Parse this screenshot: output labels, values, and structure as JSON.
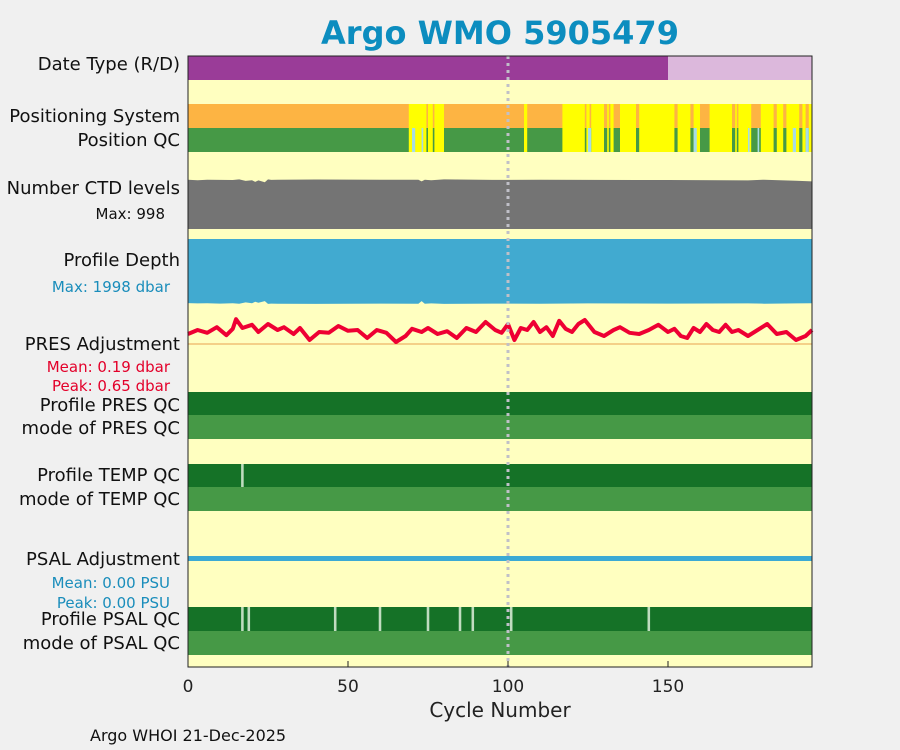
{
  "chart_data": {
    "type": "timeline",
    "title": "Argo WMO 5905479",
    "xlabel": "Cycle Number",
    "xlim": [
      0,
      195
    ],
    "xticks": [
      0,
      50,
      100,
      150
    ],
    "footer": "Argo WHOI 21-Dec-2025",
    "colors": {
      "title": "#0c8dbf",
      "background": "#ffffc0",
      "delayed_mode": "#9a3c98",
      "realtime_mode": "#dcb8dc",
      "gps": "#fdb443",
      "argos": "#ffff00",
      "qc_good": "#469946",
      "qc_probable": "#a6dce6",
      "profile_qc_a": "#157227",
      "profile_qc_other": "#c0dcc0",
      "ctd": "#747474",
      "depth": "#41aad0",
      "pres_adj": "#ee0033",
      "psal_adj": "#3baad4",
      "stat_blue": "#1a8dbb",
      "stat_red": "#e3002a",
      "dotted_line": "#c0c0c8"
    },
    "reference_cycle": 100,
    "rows": {
      "date_type": {
        "label": "Date Type (R/D)",
        "delayed_until": 150
      },
      "positioning": {
        "label": "Positioning System",
        "argos_segments": [
          [
            69,
            74.5
          ],
          [
            75,
            76.5
          ],
          [
            77,
            80
          ],
          [
            105,
            106
          ],
          [
            117,
            124
          ],
          [
            124.5,
            125.5
          ],
          [
            126,
            130
          ],
          [
            131,
            131.5
          ],
          [
            132,
            133
          ],
          [
            135,
            140
          ],
          [
            141,
            152
          ],
          [
            153,
            157
          ],
          [
            158,
            160
          ],
          [
            163,
            170
          ],
          [
            171,
            171.5
          ],
          [
            172,
            176
          ],
          [
            179,
            183
          ],
          [
            184,
            186
          ],
          [
            187,
            191
          ],
          [
            192,
            193
          ],
          [
            194,
            195
          ]
        ]
      },
      "position_qc": {
        "label": "Position QC",
        "probable_segments": [
          [
            70,
            71
          ],
          [
            73,
            73.5
          ],
          [
            125,
            126
          ],
          [
            158,
            159
          ],
          [
            175,
            175.5
          ],
          [
            178,
            178.5
          ],
          [
            189,
            190
          ],
          [
            193,
            194
          ]
        ]
      },
      "ctd_levels": {
        "label": "Number CTD levels",
        "max_label": "Max: 998",
        "max": 998
      },
      "profile_depth": {
        "label": "Profile Depth",
        "max_label": "Max: 1998 dbar",
        "max": 1998
      },
      "pres_adjustment": {
        "label": "PRES Adjustment",
        "mean_label": "Mean: 0.19 dbar",
        "peak_label": "Peak: 0.65 dbar",
        "mean": 0.19,
        "peak": 0.65
      },
      "profile_pres_qc": {
        "label": "Profile PRES QC"
      },
      "mode_pres_qc": {
        "label": "mode of PRES QC"
      },
      "profile_temp_qc": {
        "label": "Profile TEMP QC",
        "non_a_cycles": [
          17
        ]
      },
      "mode_temp_qc": {
        "label": "mode of TEMP QC"
      },
      "psal_adjustment": {
        "label": "PSAL Adjustment",
        "mean_label": "Mean: 0.00 PSU",
        "peak_label": "Peak: 0.00 PSU",
        "mean": 0.0,
        "peak": 0.0
      },
      "profile_psal_qc": {
        "label": "Profile PSAL QC",
        "non_a_cycles": [
          17,
          19,
          46,
          60,
          75,
          85,
          89,
          101,
          144
        ]
      },
      "mode_psal_qc": {
        "label": "mode of PSAL QC"
      }
    },
    "ctd_series": {
      "x": [
        0,
        3,
        6,
        10,
        14,
        16,
        18,
        20,
        21,
        22,
        24,
        25,
        26,
        28,
        40,
        60,
        72,
        73,
        74,
        76,
        80,
        95,
        110,
        125,
        150,
        175,
        180,
        190,
        195
      ],
      "y": [
        982,
        975,
        985,
        980,
        978,
        990,
        960,
        975,
        940,
        970,
        935,
        990,
        980,
        985,
        988,
        982,
        985,
        950,
        985,
        975,
        990,
        980,
        985,
        980,
        978,
        970,
        985,
        965,
        950
      ]
    },
    "depth_series": {
      "x": [
        0,
        3,
        6,
        10,
        14,
        16,
        18,
        20,
        21,
        22,
        24,
        25,
        26,
        28,
        40,
        60,
        72,
        73,
        74,
        76,
        80,
        95,
        110,
        125,
        150,
        175,
        180,
        190,
        195
      ],
      "y": [
        1940,
        1950,
        1945,
        1955,
        1948,
        1960,
        1920,
        1945,
        1900,
        1930,
        1880,
        1965,
        1955,
        1960,
        1965,
        1955,
        1960,
        1880,
        1960,
        1950,
        1965,
        1955,
        1960,
        1950,
        1955,
        1950,
        1960,
        1950,
        1945
      ]
    },
    "pres_adj_series": {
      "x": [
        0,
        3,
        6,
        9,
        12,
        14,
        15,
        17,
        20,
        22,
        25,
        28,
        30,
        33,
        35,
        38,
        41,
        44,
        47,
        50,
        53,
        56,
        59,
        62,
        65,
        68,
        70,
        73,
        75,
        78,
        81,
        84,
        87,
        90,
        93,
        96,
        98,
        100,
        102,
        104,
        106,
        108,
        110,
        112,
        114,
        116,
        118,
        120,
        122,
        124,
        127,
        130,
        133,
        135,
        138,
        141,
        144,
        147,
        150,
        152,
        154,
        156,
        158,
        160,
        162,
        164,
        166,
        168,
        170,
        172,
        175,
        178,
        181,
        184,
        187,
        190,
        193,
        195
      ],
      "y": [
        0.25,
        0.35,
        0.28,
        0.42,
        0.22,
        0.38,
        0.62,
        0.4,
        0.48,
        0.3,
        0.5,
        0.35,
        0.42,
        0.25,
        0.4,
        0.1,
        0.3,
        0.28,
        0.45,
        0.33,
        0.35,
        0.15,
        0.35,
        0.28,
        0.05,
        0.2,
        0.38,
        0.3,
        0.4,
        0.25,
        0.32,
        0.15,
        0.4,
        0.3,
        0.55,
        0.35,
        0.28,
        0.5,
        0.1,
        0.4,
        0.35,
        0.55,
        0.3,
        0.42,
        0.2,
        0.58,
        0.38,
        0.3,
        0.5,
        0.6,
        0.3,
        0.2,
        0.35,
        0.42,
        0.28,
        0.25,
        0.35,
        0.48,
        0.3,
        0.38,
        0.2,
        0.15,
        0.4,
        0.3,
        0.5,
        0.35,
        0.3,
        0.48,
        0.3,
        0.35,
        0.2,
        0.35,
        0.5,
        0.25,
        0.3,
        0.1,
        0.2,
        0.35
      ]
    }
  }
}
